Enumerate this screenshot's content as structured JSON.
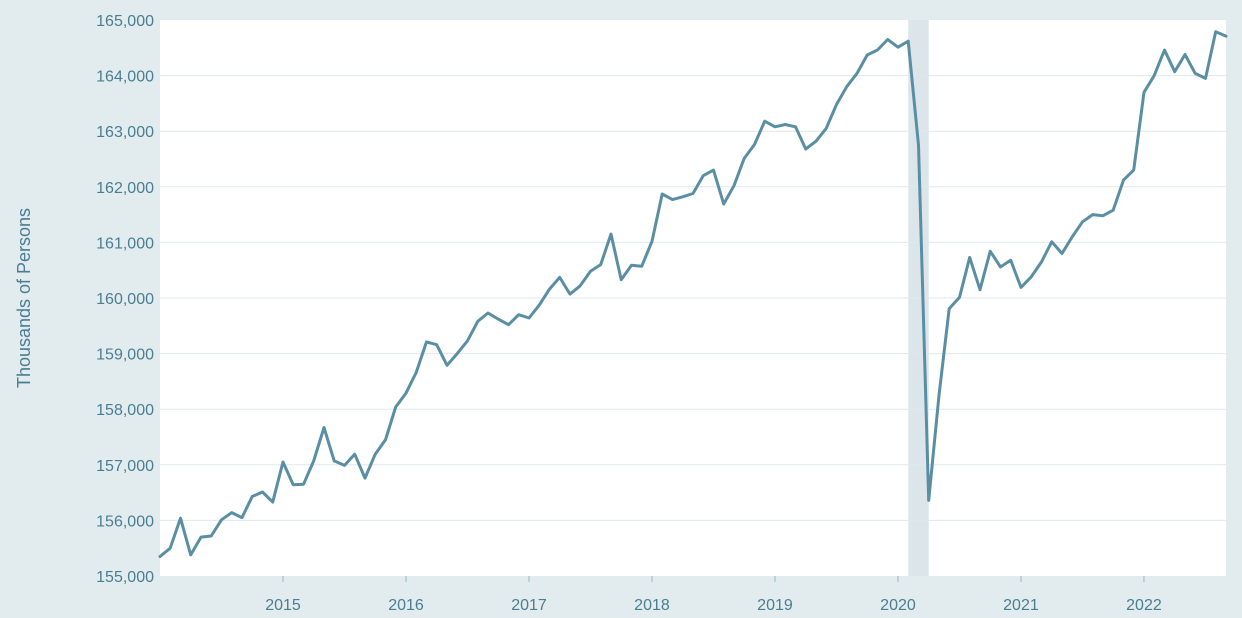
{
  "chart_data": {
    "type": "line",
    "title": "",
    "xlabel": "",
    "ylabel": "Thousands of Persons",
    "ylim": [
      155000,
      165000
    ],
    "xlim": [
      2014.0,
      2022.667
    ],
    "yticks": [
      155000,
      156000,
      157000,
      158000,
      159000,
      160000,
      161000,
      162000,
      163000,
      164000,
      165000
    ],
    "ytick_labels": [
      "155,000",
      "156,000",
      "157,000",
      "158,000",
      "159,000",
      "160,000",
      "161,000",
      "162,000",
      "163,000",
      "164,000",
      "165,000"
    ],
    "xticks": [
      2015,
      2016,
      2017,
      2018,
      2019,
      2020,
      2021,
      2022
    ],
    "xtick_labels": [
      "2015",
      "2016",
      "2017",
      "2018",
      "2019",
      "2020",
      "2021",
      "2022"
    ],
    "grid": true,
    "legend": "none",
    "recession_shading": [
      {
        "start": "2020-02",
        "end": "2020-04"
      }
    ],
    "colors": {
      "line": "#5a8fa3",
      "axis_text": "#4a7e92",
      "background": "#e2ebee",
      "plot_background": "#ffffff",
      "grid": "#dfe8ec",
      "shading": "#dce6ea"
    },
    "series": [
      {
        "x": [
          "2014-01",
          "2014-02",
          "2014-03",
          "2014-04",
          "2014-05",
          "2014-06",
          "2014-07",
          "2014-08",
          "2014-09",
          "2014-10",
          "2014-11",
          "2014-12",
          "2015-01",
          "2015-02",
          "2015-03",
          "2015-04",
          "2015-05",
          "2015-06",
          "2015-07",
          "2015-08",
          "2015-09",
          "2015-10",
          "2015-11",
          "2015-12",
          "2016-01",
          "2016-02",
          "2016-03",
          "2016-04",
          "2016-05",
          "2016-06",
          "2016-07",
          "2016-08",
          "2016-09",
          "2016-10",
          "2016-11",
          "2016-12",
          "2017-01",
          "2017-02",
          "2017-03",
          "2017-04",
          "2017-05",
          "2017-06",
          "2017-07",
          "2017-08",
          "2017-09",
          "2017-10",
          "2017-11",
          "2017-12",
          "2018-01",
          "2018-02",
          "2018-03",
          "2018-04",
          "2018-05",
          "2018-06",
          "2018-07",
          "2018-08",
          "2018-09",
          "2018-10",
          "2018-11",
          "2018-12",
          "2019-01",
          "2019-02",
          "2019-03",
          "2019-04",
          "2019-05",
          "2019-06",
          "2019-07",
          "2019-08",
          "2019-09",
          "2019-10",
          "2019-11",
          "2019-12",
          "2020-01",
          "2020-02",
          "2020-03",
          "2020-04",
          "2020-05",
          "2020-06",
          "2020-07",
          "2020-08",
          "2020-09",
          "2020-10",
          "2020-11",
          "2020-12",
          "2021-01",
          "2021-02",
          "2021-03",
          "2021-04",
          "2021-05",
          "2021-06",
          "2021-07",
          "2021-08",
          "2021-09",
          "2021-10",
          "2021-11",
          "2021-12",
          "2022-01",
          "2022-02",
          "2022-03",
          "2022-04",
          "2022-05",
          "2022-06",
          "2022-07",
          "2022-08",
          "2022-09"
        ],
        "values": [
          155350,
          155500,
          156040,
          155380,
          155700,
          155720,
          156010,
          156140,
          156050,
          156430,
          156510,
          156330,
          157050,
          156640,
          156650,
          157070,
          157670,
          157070,
          156990,
          157190,
          156760,
          157190,
          157450,
          158040,
          158290,
          158660,
          159210,
          159160,
          158790,
          159000,
          159230,
          159580,
          159730,
          159620,
          159520,
          159700,
          159640,
          159870,
          160160,
          160370,
          160070,
          160220,
          160480,
          160600,
          161150,
          160330,
          160590,
          160570,
          161020,
          161870,
          161770,
          161820,
          161880,
          162200,
          162300,
          161690,
          162020,
          162510,
          162760,
          163180,
          163080,
          163120,
          163080,
          162680,
          162820,
          163050,
          163480,
          163800,
          164040,
          164370,
          164460,
          164650,
          164510,
          164620,
          162750,
          156360,
          158250,
          159810,
          160010,
          160730,
          160150,
          160840,
          160560,
          160680,
          160190,
          160380,
          160650,
          161010,
          160800,
          161100,
          161370,
          161500,
          161480,
          161580,
          162120,
          162300,
          163700,
          164000,
          164460,
          164070,
          164380,
          164040,
          163950,
          164790,
          164710
        ]
      }
    ]
  }
}
